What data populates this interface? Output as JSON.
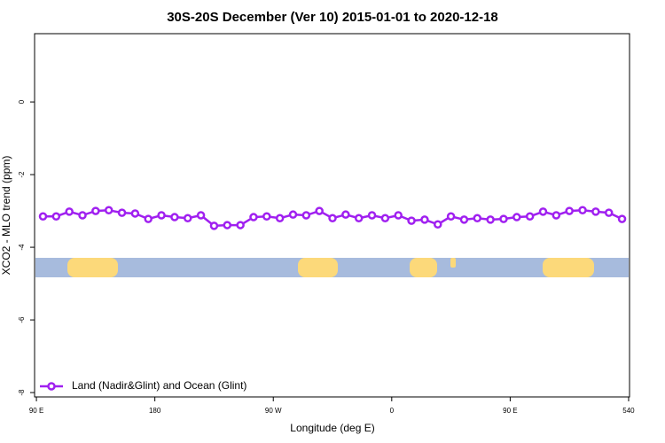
{
  "chart_data": {
    "type": "line",
    "title": "30S-20S December (Ver 10)   2015-01-01 to 2020-12-18",
    "x_label": "Longitude (deg E)",
    "y_label": "XCO2 - MLO trend (ppm)",
    "x": [
      95,
      105,
      115,
      125,
      135,
      145,
      155,
      165,
      175,
      185,
      195,
      205,
      215,
      225,
      235,
      245,
      255,
      265,
      275,
      285,
      295,
      305,
      315,
      325,
      335,
      345,
      355,
      365,
      375,
      385,
      395,
      405,
      415,
      425,
      435,
      445,
      455,
      465,
      475,
      485,
      495,
      505,
      515,
      525,
      535
    ],
    "series": [
      {
        "name": "Land (Nadir&Glint) and Ocean (Glint)",
        "color": "#a020f0",
        "values": [
          -3.15,
          -3.15,
          -3.02,
          -3.12,
          -3.0,
          -2.98,
          -3.05,
          -3.07,
          -3.22,
          -3.12,
          -3.17,
          -3.2,
          -3.12,
          -3.41,
          -3.39,
          -3.39,
          -3.17,
          -3.15,
          -3.2,
          -3.1,
          -3.12,
          -3.0,
          -3.2,
          -3.1,
          -3.2,
          -3.12,
          -3.2,
          -3.12,
          -3.27,
          -3.24,
          -3.37,
          -3.15,
          -3.24,
          -3.2,
          -3.24,
          -3.22,
          -3.17,
          -3.15,
          -3.02,
          -3.12,
          -3.0,
          -2.98,
          -3.02,
          -3.05,
          -3.22
        ]
      }
    ],
    "xlim": [
      88.6,
      540.7
    ],
    "ylim": [
      -8.12,
      1.88
    ],
    "xticks": [
      {
        "value": 90,
        "label": "90 E"
      },
      180,
      {
        "value": 270,
        "label": "90 W"
      },
      {
        "value": 360,
        "label": "0"
      },
      {
        "value": 450,
        "label": "90 E"
      },
      540
    ],
    "yticks": [
      0,
      -2,
      -4,
      -6,
      -8
    ],
    "legend_position": "bottom-left"
  }
}
